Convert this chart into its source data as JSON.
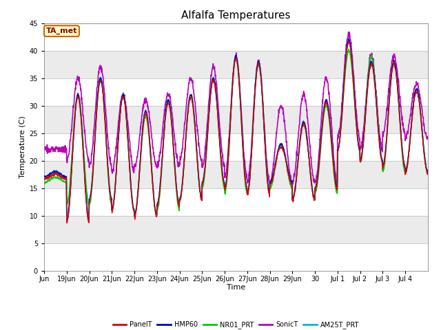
{
  "title": "Alfalfa Temperatures",
  "xlabel": "Time",
  "ylabel": "Temperature (C)",
  "ylim": [
    0,
    45
  ],
  "yticks": [
    0,
    5,
    10,
    15,
    20,
    25,
    30,
    35,
    40,
    45
  ],
  "series": {
    "PanelT": {
      "color": "#dd0000",
      "lw": 1.0,
      "zorder": 5
    },
    "HMP60": {
      "color": "#0000cc",
      "lw": 1.0,
      "zorder": 4
    },
    "NR01_PRT": {
      "color": "#00cc00",
      "lw": 1.2,
      "zorder": 3
    },
    "SonicT": {
      "color": "#bb00bb",
      "lw": 1.2,
      "zorder": 2
    },
    "AM25T_PRT": {
      "color": "#00bbcc",
      "lw": 1.2,
      "zorder": 1
    }
  },
  "legend_order": [
    "PanelT",
    "HMP60",
    "NR01_PRT",
    "SonicT",
    "AM25T_PRT"
  ],
  "annotation": {
    "text": "TA_met",
    "facecolor": "#ffffcc",
    "edgecolor": "#cc6600",
    "textcolor": "#880000",
    "fontsize": 8,
    "fontweight": "bold"
  },
  "bg_bands": [
    {
      "ymin": 0,
      "ymax": 5,
      "color": "#ffffff"
    },
    {
      "ymin": 5,
      "ymax": 10,
      "color": "#ebebeb"
    },
    {
      "ymin": 10,
      "ymax": 15,
      "color": "#ffffff"
    },
    {
      "ymin": 15,
      "ymax": 20,
      "color": "#ebebeb"
    },
    {
      "ymin": 20,
      "ymax": 25,
      "color": "#ffffff"
    },
    {
      "ymin": 25,
      "ymax": 30,
      "color": "#ebebeb"
    },
    {
      "ymin": 30,
      "ymax": 35,
      "color": "#ffffff"
    },
    {
      "ymin": 35,
      "ymax": 40,
      "color": "#ebebeb"
    },
    {
      "ymin": 40,
      "ymax": 45,
      "color": "#ffffff"
    }
  ],
  "title_fontsize": 11,
  "axis_fontsize": 8,
  "tick_fontsize": 7,
  "xtick_labels": [
    "Jun",
    "19Jun",
    "20Jun",
    "21Jun",
    "22Jun",
    "23Jun",
    "24Jun",
    "25Jun",
    "26Jun",
    "27Jun",
    "28Jun",
    "29Jun",
    "30",
    "Jul 1",
    "Jul 2",
    "Jul 3",
    "Jul 4"
  ],
  "daily_peaks": [
    18,
    32,
    35,
    32,
    29,
    31,
    32,
    35,
    39,
    38,
    23,
    27,
    31,
    42,
    38,
    38,
    33
  ],
  "daily_mins": [
    17,
    9,
    13,
    11,
    10,
    12,
    13,
    16,
    15,
    14,
    16,
    13,
    15,
    22,
    20,
    19,
    18
  ],
  "sonic_peaks": [
    22,
    35,
    37,
    32,
    31,
    32,
    35,
    37,
    39,
    38,
    30,
    32,
    35,
    43,
    39,
    39,
    34
  ],
  "sonic_mins": [
    22,
    20,
    19,
    18,
    19,
    19,
    20,
    19,
    17,
    16,
    16,
    16,
    16,
    24,
    22,
    25,
    24
  ],
  "nr01_peaks": [
    17,
    32,
    35,
    32,
    28,
    31,
    32,
    35,
    39,
    38,
    23,
    27,
    30,
    40,
    39,
    38,
    33
  ],
  "nr01_mins": [
    16,
    12,
    12,
    11,
    10,
    11,
    13,
    15,
    14,
    14,
    15,
    13,
    14,
    22,
    20,
    18,
    18
  ],
  "am25_peaks": [
    18,
    32,
    35,
    32,
    29,
    31,
    32,
    35,
    39,
    38,
    23,
    27,
    31,
    42,
    38,
    38,
    33
  ],
  "am25_mins": [
    17,
    10,
    13,
    11,
    10,
    12,
    13,
    16,
    15,
    14,
    16,
    13,
    15,
    22,
    20,
    19,
    18
  ]
}
